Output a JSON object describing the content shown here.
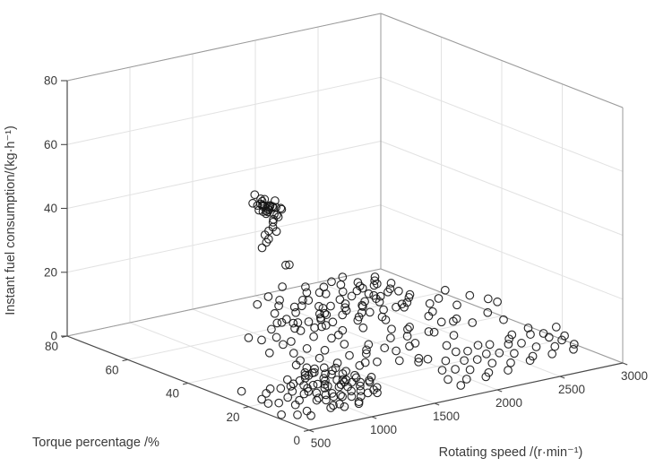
{
  "figure": {
    "background": "#ffffff",
    "axis_color": "#4a4a4a",
    "box_color": "#9a9a9a",
    "grid_color": "#e2e2e2",
    "label_color": "#3a3a3a",
    "point_color": "#141414"
  },
  "chart_data": {
    "type": "scatter",
    "projection": "3d",
    "title": "",
    "xlabel": "Rotating speed /(r·min⁻¹)",
    "ylabel": "Torque percentage /%",
    "zlabel": "Instant fuel consumption/(kg·h⁻¹)",
    "xlim": [
      500,
      3000
    ],
    "ylim": [
      0,
      80
    ],
    "zlim": [
      0,
      80
    ],
    "xticks": [
      500,
      1000,
      1500,
      2000,
      2500,
      3000
    ],
    "yticks": [
      0,
      20,
      40,
      60,
      80
    ],
    "zticks": [
      0,
      20,
      40,
      60,
      80
    ],
    "grid": true,
    "legend": "none",
    "marker": "open-circle",
    "points_format": [
      "rotating_speed_r_min",
      "torque_percentage_pct",
      "instant_fuel_consumption_kg_h"
    ],
    "points": [
      [
        1700,
        64,
        35
      ],
      [
        1720,
        66,
        36
      ],
      [
        1740,
        63,
        34
      ],
      [
        1760,
        67,
        37
      ],
      [
        1780,
        65,
        35
      ],
      [
        1690,
        68,
        36
      ],
      [
        1710,
        62,
        33
      ],
      [
        1730,
        69,
        38
      ],
      [
        1750,
        64,
        36
      ],
      [
        1770,
        66,
        34
      ],
      [
        1800,
        63,
        35
      ],
      [
        1680,
        65,
        37
      ],
      [
        1745,
        67,
        35
      ],
      [
        1725,
        61,
        34
      ],
      [
        1765,
        68,
        36
      ],
      [
        1785,
        64,
        33
      ],
      [
        1705,
        66,
        38
      ],
      [
        1735,
        65,
        35
      ],
      [
        1755,
        63,
        36
      ],
      [
        1715,
        67,
        34
      ],
      [
        1795,
        65,
        37
      ],
      [
        1675,
        64,
        35
      ],
      [
        1748,
        66,
        33
      ],
      [
        1728,
        68,
        35
      ],
      [
        1768,
        62,
        36
      ],
      [
        1738,
        65,
        34
      ],
      [
        1758,
        67,
        35
      ],
      [
        1708,
        63,
        37
      ],
      [
        1778,
        66,
        35
      ],
      [
        1718,
        64,
        36
      ],
      [
        1730,
        63,
        30
      ],
      [
        1745,
        65,
        28
      ],
      [
        1720,
        64,
        26
      ],
      [
        1750,
        66,
        24
      ],
      [
        1735,
        62,
        29
      ],
      [
        1740,
        67,
        22
      ],
      [
        1715,
        65,
        27
      ],
      [
        1755,
        64,
        31
      ],
      [
        1740,
        58,
        20
      ],
      [
        1760,
        60,
        19
      ],
      [
        1150,
        36,
        15
      ],
      [
        1190,
        40,
        16
      ],
      [
        1230,
        34,
        15
      ],
      [
        1270,
        42,
        17
      ],
      [
        1310,
        38,
        16
      ],
      [
        1350,
        45,
        17
      ],
      [
        1390,
        33,
        15
      ],
      [
        1430,
        41,
        16
      ],
      [
        1470,
        37,
        17
      ],
      [
        1510,
        44,
        16
      ],
      [
        1550,
        39,
        15
      ],
      [
        1590,
        46,
        17
      ],
      [
        1630,
        35,
        16
      ],
      [
        1670,
        43,
        17
      ],
      [
        1710,
        40,
        16
      ],
      [
        1750,
        47,
        17
      ],
      [
        1790,
        36,
        15
      ],
      [
        1830,
        44,
        16
      ],
      [
        1870,
        41,
        17
      ],
      [
        1910,
        48,
        16
      ],
      [
        1950,
        38,
        15
      ],
      [
        1990,
        45,
        16
      ],
      [
        2030,
        42,
        17
      ],
      [
        2070,
        49,
        15
      ],
      [
        2110,
        40,
        16
      ],
      [
        2150,
        46,
        15
      ],
      [
        2190,
        43,
        16
      ],
      [
        2230,
        50,
        15
      ],
      [
        1180,
        31,
        14
      ],
      [
        1260,
        39,
        14
      ],
      [
        1340,
        35,
        14
      ],
      [
        1420,
        43,
        15
      ],
      [
        1500,
        38,
        14
      ],
      [
        1580,
        45,
        15
      ],
      [
        1660,
        41,
        14
      ],
      [
        1740,
        48,
        15
      ],
      [
        1820,
        37,
        14
      ],
      [
        1900,
        44,
        14
      ],
      [
        1980,
        40,
        15
      ],
      [
        2060,
        47,
        14
      ],
      [
        2140,
        42,
        14
      ],
      [
        2220,
        38,
        14
      ],
      [
        1220,
        47,
        16
      ],
      [
        1380,
        50,
        16
      ],
      [
        1540,
        52,
        17
      ],
      [
        1700,
        51,
        16
      ],
      [
        1860,
        49,
        17
      ],
      [
        2020,
        52,
        16
      ],
      [
        2180,
        48,
        15
      ],
      [
        1300,
        29,
        15
      ],
      [
        1460,
        32,
        14
      ],
      [
        1620,
        30,
        15
      ],
      [
        1780,
        33,
        14
      ],
      [
        1940,
        31,
        15
      ],
      [
        2100,
        34,
        14
      ],
      [
        950,
        20,
        6
      ],
      [
        1000,
        25,
        7
      ],
      [
        1050,
        18,
        5
      ],
      [
        1100,
        30,
        8
      ],
      [
        1150,
        22,
        6
      ],
      [
        1200,
        35,
        9
      ],
      [
        1250,
        16,
        5
      ],
      [
        1300,
        28,
        8
      ],
      [
        1350,
        40,
        10
      ],
      [
        1400,
        24,
        7
      ],
      [
        1450,
        32,
        9
      ],
      [
        1500,
        19,
        6
      ],
      [
        1550,
        38,
        10
      ],
      [
        1600,
        26,
        8
      ],
      [
        1650,
        42,
        11
      ],
      [
        1700,
        21,
        7
      ],
      [
        1750,
        34,
        9
      ],
      [
        1800,
        27,
        8
      ],
      [
        1850,
        44,
        12
      ],
      [
        1900,
        23,
        7
      ],
      [
        1950,
        36,
        10
      ],
      [
        2000,
        29,
        9
      ],
      [
        2050,
        41,
        12
      ],
      [
        2100,
        25,
        8
      ],
      [
        2150,
        37,
        11
      ],
      [
        2200,
        31,
        10
      ],
      [
        2250,
        43,
        13
      ],
      [
        2300,
        27,
        9
      ],
      [
        980,
        33,
        8
      ],
      [
        1080,
        27,
        7
      ],
      [
        1180,
        39,
        9
      ],
      [
        1280,
        23,
        6
      ],
      [
        1380,
        35,
        9
      ],
      [
        1480,
        29,
        8
      ],
      [
        1580,
        41,
        11
      ],
      [
        1680,
        24,
        7
      ],
      [
        1780,
        37,
        10
      ],
      [
        1880,
        30,
        9
      ],
      [
        1980,
        43,
        12
      ],
      [
        2080,
        26,
        8
      ],
      [
        2180,
        39,
        11
      ],
      [
        2280,
        33,
        10
      ],
      [
        1030,
        42,
        9
      ],
      [
        1130,
        15,
        5
      ],
      [
        1230,
        31,
        8
      ],
      [
        1330,
        45,
        10
      ],
      [
        1430,
        20,
        6
      ],
      [
        1530,
        33,
        9
      ],
      [
        1630,
        17,
        6
      ],
      [
        1730,
        40,
        11
      ],
      [
        1830,
        22,
        7
      ],
      [
        1930,
        34,
        10
      ],
      [
        2030,
        18,
        7
      ],
      [
        2130,
        44,
        12
      ],
      [
        2230,
        28,
        9
      ],
      [
        2330,
        36,
        11
      ],
      [
        1060,
        24,
        6
      ],
      [
        1160,
        36,
        8
      ],
      [
        1260,
        44,
        9
      ],
      [
        1360,
        19,
        6
      ],
      [
        1460,
        38,
        10
      ],
      [
        1560,
        25,
        7
      ],
      [
        1660,
        43,
        11
      ],
      [
        1760,
        16,
        6
      ],
      [
        1860,
        39,
        11
      ],
      [
        1960,
        28,
        9
      ],
      [
        2060,
        45,
        13
      ],
      [
        2160,
        21,
        8
      ],
      [
        2260,
        40,
        12
      ],
      [
        1010,
        15,
        4
      ],
      [
        1110,
        41,
        8
      ],
      [
        1210,
        26,
        7
      ],
      [
        1310,
        13,
        5
      ],
      [
        1410,
        43,
        10
      ],
      [
        1510,
        23,
        7
      ],
      [
        1610,
        35,
        9
      ],
      [
        1710,
        14,
        6
      ],
      [
        1810,
        42,
        11
      ],
      [
        1910,
        26,
        8
      ],
      [
        2010,
        38,
        11
      ],
      [
        850,
        12,
        2
      ],
      [
        880,
        16,
        3
      ],
      [
        910,
        9,
        1
      ],
      [
        940,
        20,
        3
      ],
      [
        970,
        14,
        2
      ],
      [
        1000,
        22,
        4
      ],
      [
        1030,
        11,
        2
      ],
      [
        1060,
        18,
        3
      ],
      [
        1090,
        8,
        1
      ],
      [
        1120,
        24,
        4
      ],
      [
        1150,
        13,
        2
      ],
      [
        1180,
        19,
        3
      ],
      [
        1210,
        10,
        2
      ],
      [
        1240,
        23,
        4
      ],
      [
        1270,
        15,
        3
      ],
      [
        1300,
        21,
        4
      ],
      [
        1330,
        12,
        2
      ],
      [
        870,
        17,
        2
      ],
      [
        900,
        11,
        2
      ],
      [
        930,
        25,
        3
      ],
      [
        960,
        9,
        1
      ],
      [
        990,
        19,
        3
      ],
      [
        1020,
        14,
        2
      ],
      [
        1050,
        23,
        4
      ],
      [
        1080,
        10,
        2
      ],
      [
        1110,
        20,
        3
      ],
      [
        1140,
        16,
        3
      ],
      [
        1170,
        26,
        4
      ],
      [
        1200,
        12,
        2
      ],
      [
        1230,
        18,
        3
      ],
      [
        1260,
        9,
        2
      ],
      [
        1290,
        24,
        4
      ],
      [
        1320,
        14,
        3
      ],
      [
        860,
        21,
        3
      ],
      [
        890,
        13,
        2
      ],
      [
        920,
        18,
        3
      ],
      [
        950,
        7,
        1
      ],
      [
        980,
        23,
        3
      ],
      [
        1010,
        16,
        3
      ],
      [
        1040,
        12,
        2
      ],
      [
        1070,
        25,
        4
      ],
      [
        1100,
        15,
        3
      ],
      [
        1130,
        9,
        2
      ],
      [
        1160,
        22,
        4
      ],
      [
        1190,
        17,
        3
      ],
      [
        1220,
        13,
        3
      ],
      [
        1250,
        20,
        4
      ],
      [
        1280,
        11,
        2
      ],
      [
        1310,
        18,
        3
      ],
      [
        1340,
        15,
        3
      ],
      [
        865,
        8,
        1
      ],
      [
        905,
        22,
        3
      ],
      [
        945,
        16,
        2
      ],
      [
        985,
        12,
        2
      ],
      [
        1025,
        19,
        3
      ],
      [
        1065,
        7,
        1
      ],
      [
        1105,
        24,
        4
      ],
      [
        1145,
        14,
        3
      ],
      [
        1185,
        21,
        4
      ],
      [
        1225,
        16,
        3
      ],
      [
        1800,
        8,
        2
      ],
      [
        1850,
        12,
        3
      ],
      [
        1900,
        6,
        2
      ],
      [
        1950,
        15,
        4
      ],
      [
        2000,
        9,
        3
      ],
      [
        2050,
        13,
        4
      ],
      [
        2100,
        7,
        2
      ],
      [
        2150,
        16,
        5
      ],
      [
        2200,
        10,
        3
      ],
      [
        2250,
        14,
        4
      ],
      [
        2300,
        8,
        3
      ],
      [
        2350,
        17,
        5
      ],
      [
        2400,
        11,
        4
      ],
      [
        2450,
        15,
        5
      ],
      [
        2500,
        9,
        3
      ],
      [
        2550,
        18,
        6
      ],
      [
        2600,
        12,
        4
      ],
      [
        2650,
        16,
        6
      ],
      [
        2700,
        10,
        4
      ],
      [
        2750,
        14,
        5
      ],
      [
        2800,
        8,
        3
      ],
      [
        2850,
        13,
        5
      ],
      [
        2880,
        17,
        6
      ],
      [
        1830,
        5,
        1
      ],
      [
        1930,
        11,
        3
      ],
      [
        2030,
        5,
        2
      ],
      [
        2130,
        12,
        4
      ],
      [
        2230,
        6,
        2
      ],
      [
        2330,
        13,
        4
      ],
      [
        2430,
        7,
        3
      ],
      [
        2530,
        14,
        5
      ],
      [
        2630,
        8,
        3
      ],
      [
        2730,
        15,
        6
      ],
      [
        2830,
        9,
        4
      ],
      [
        1880,
        18,
        4
      ],
      [
        2080,
        17,
        5
      ],
      [
        2280,
        18,
        5
      ],
      [
        2480,
        16,
        6
      ],
      [
        2680,
        18,
        7
      ],
      [
        2780,
        11,
        5
      ],
      [
        2350,
        28,
        9
      ],
      [
        2450,
        32,
        11
      ],
      [
        2550,
        26,
        10
      ],
      [
        2650,
        30,
        12
      ],
      [
        2400,
        36,
        12
      ],
      [
        2500,
        38,
        13
      ],
      [
        2600,
        34,
        12
      ],
      [
        2700,
        29,
        11
      ],
      [
        2380,
        24,
        9
      ],
      [
        2580,
        22,
        9
      ],
      [
        520,
        10,
        1
      ],
      [
        560,
        16,
        2
      ],
      [
        600,
        8,
        1
      ],
      [
        640,
        20,
        3
      ],
      [
        680,
        12,
        2
      ],
      [
        720,
        22,
        3
      ],
      [
        760,
        14,
        2
      ],
      [
        800,
        18,
        3
      ],
      [
        540,
        24,
        3
      ],
      [
        620,
        15,
        2
      ],
      [
        700,
        9,
        1
      ],
      [
        780,
        21,
        3
      ],
      [
        580,
        19,
        2
      ],
      [
        660,
        6,
        1
      ],
      [
        740,
        17,
        2
      ]
    ]
  }
}
